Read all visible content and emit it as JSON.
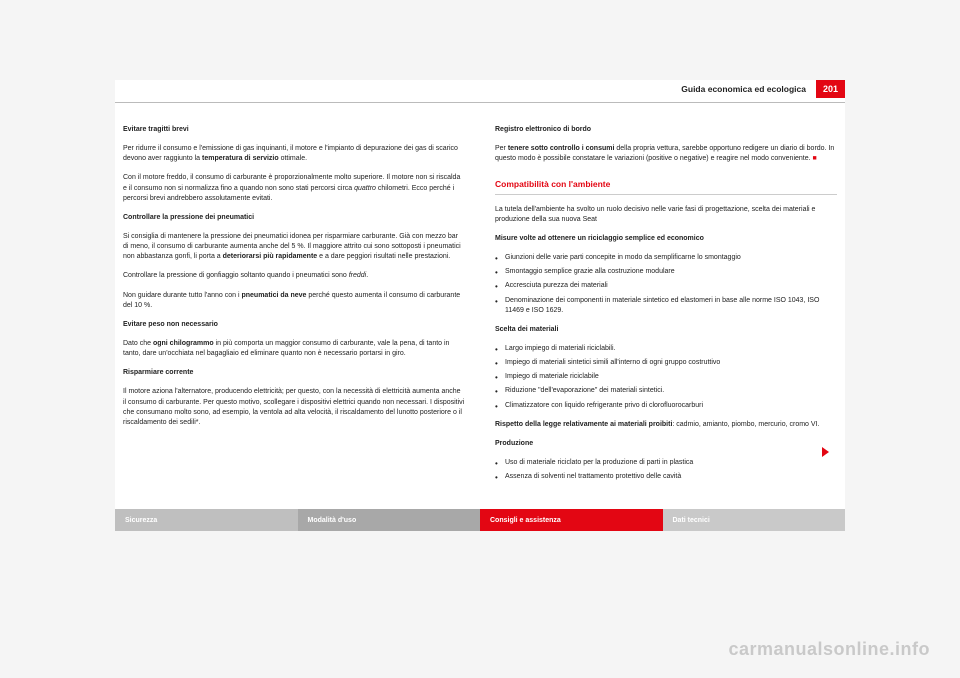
{
  "header": {
    "section_title": "Guida economica ed ecologica",
    "page_number": "201"
  },
  "left": {
    "h1": "Evitare tragitti brevi",
    "p1a": "Per ridurre il consumo e l'emissione di gas inquinanti, il motore e l'impianto di depurazione dei gas di scarico devono aver raggiunto la ",
    "p1b": "temperatura di servizio",
    "p1c": " ottimale.",
    "p2a": "Con il motore freddo, il consumo di carburante è proporzionalmente molto superiore. Il motore non si riscalda e il consumo non si normalizza fino a quando non sono stati percorsi circa ",
    "p2b": "quattro",
    "p2c": " chilometri. Ecco perché i percorsi brevi andrebbero assolutamente evitati.",
    "h2": "Controllare la pressione dei pneumatici",
    "p3a": "Si consiglia di mantenere la pressione dei pneumatici idonea per risparmiare carburante. Già con mezzo bar di meno, il consumo di carburante aumenta anche del 5 %. Il maggiore attrito cui sono sottoposti i pneumatici non abbastanza gonfi, li porta a ",
    "p3b": "deteriorarsi più rapidamente",
    "p3c": " e a dare peggiori risultati nelle prestazioni.",
    "p4a": "Controllare la pressione di gonfiaggio soltanto quando i pneumatici sono ",
    "p4b": "freddi",
    "p4c": ".",
    "p5a": "Non guidare durante tutto l'anno con i ",
    "p5b": "pneumatici da neve",
    "p5c": " perché questo aumenta il consumo di carburante del 10 %.",
    "h3": "Evitare peso non necessario",
    "p6a": "Dato che ",
    "p6b": "ogni chilogrammo",
    "p6c": " in più comporta un maggior consumo di carburante, vale la pena, di tanto in tanto, dare un'occhiata nel bagagliaio ed eliminare quanto non è necessario portarsi in giro.",
    "h4": "Risparmiare corrente",
    "p7": "Il motore aziona l'alternatore, producendo elettricità; per questo, con la necessità di elettricità aumenta anche il consumo di carburante. Per questo motivo, scollegare i dispositivi elettrici quando non necessari. I dispositivi che consumano molto sono, ad esempio, la ventola ad alta velocità, il riscaldamento del lunotto posteriore o il riscaldamento dei sedili*."
  },
  "right": {
    "h1": "Registro elettronico di bordo",
    "p1a": "Per ",
    "p1b": "tenere sotto controllo i consumi",
    "p1c": " della propria vettura, sarebbe opportuno redigere un diario di bordo. In questo modo è possibile constatare le variazioni (positive o negative) e reagire nel modo conveniente. ",
    "p1d": "■",
    "sub_title": "Compatibilità con l'ambiente",
    "p2": "La tutela dell'ambiente ha svolto un ruolo decisivo nelle varie fasi di progettazione, scelta dei materiali e produzione della sua nuova Seat",
    "h2": "Misure volte ad ottenere un riciclaggio semplice ed economico",
    "b1": [
      "Giunzioni delle varie parti concepite in modo da semplificarne lo smontaggio",
      "Smontaggio semplice grazie alla costruzione modulare",
      "Accresciuta purezza dei materiali",
      "Denominazione dei componenti in materiale sintetico ed elastomeri in base alle norme ISO 1043, ISO 11469 e ISO 1629."
    ],
    "h3": "Scelta dei materiali",
    "b2": [
      "Largo impiego di materiali riciclabili.",
      "Impiego di materiali sintetici simili all'interno di ogni gruppo costruttivo",
      "Impiego di materiale riciclabile",
      "Riduzione \"dell'evaporazione\" dei materiali sintetici.",
      "Climatizzatore con liquido refrigerante privo di clorofluorocarburi"
    ],
    "p3a": "Rispetto della legge relativamente ai materiali proibiti",
    "p3b": ": cadmio, amianto, piombo, mercurio, cromo VI.",
    "h4": "Produzione",
    "b3": [
      "Uso di materiale riciclato per la produzione di parti in plastica",
      "Assenza di solventi nel trattamento protettivo delle cavità"
    ]
  },
  "footer": {
    "tabs": [
      "Sicurezza",
      "Modalità d'uso",
      "Consigli e assistenza",
      "Dati tecnici"
    ]
  },
  "watermark": "carmanualsonline.info"
}
